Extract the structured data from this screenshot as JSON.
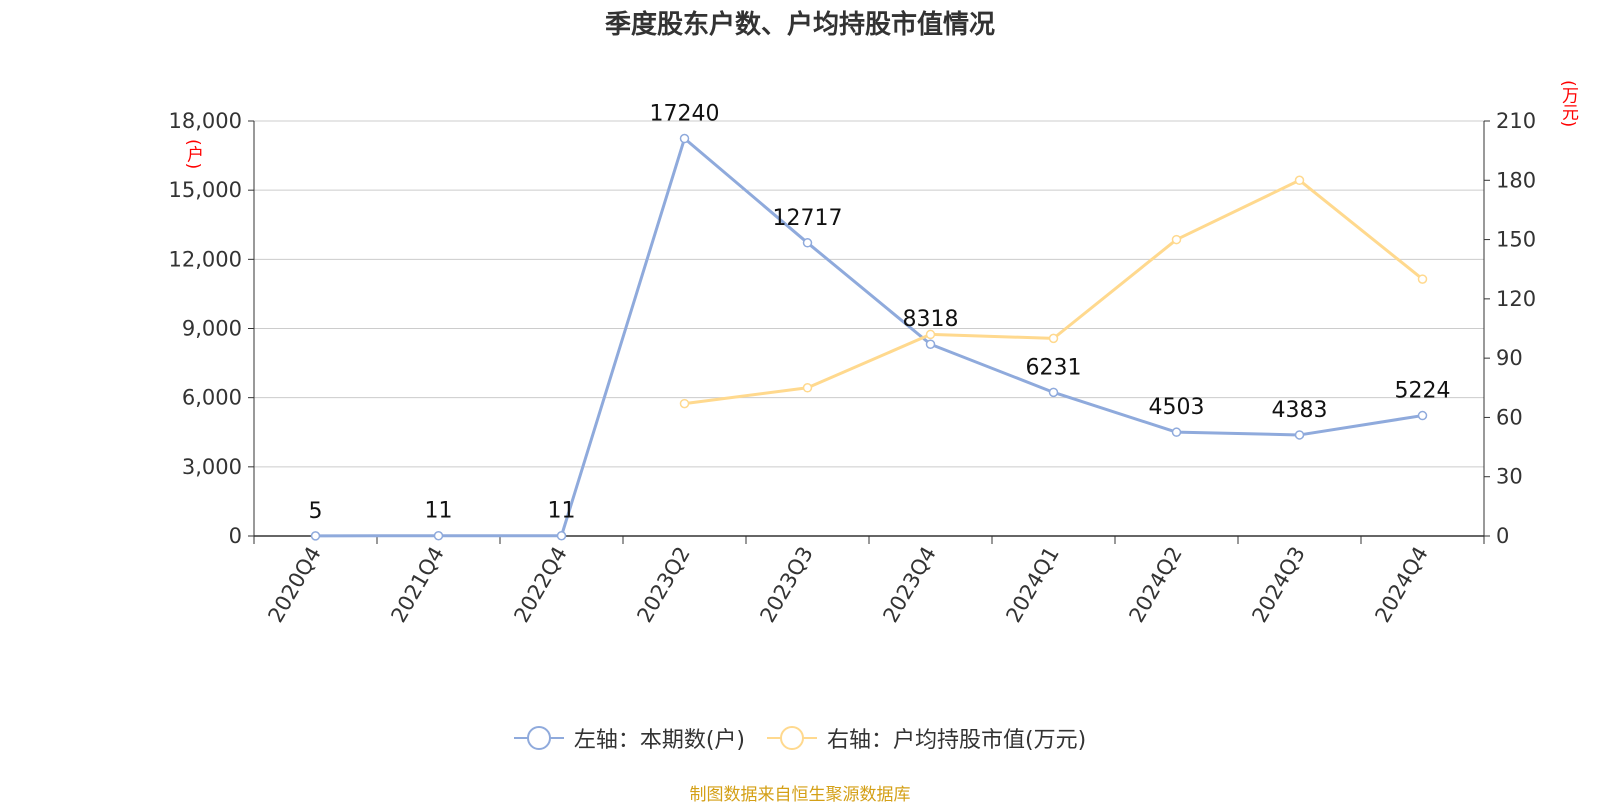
{
  "chart_data": {
    "type": "line",
    "title": "季度股东户数、户均持股市值情况",
    "categories": [
      "2020Q4",
      "2021Q4",
      "2022Q4",
      "2023Q2",
      "2023Q3",
      "2023Q4",
      "2024Q1",
      "2024Q2",
      "2024Q3",
      "2024Q4"
    ],
    "series": [
      {
        "name": "左轴：本期数(户)",
        "axis": "left",
        "color": "#8faadc",
        "values": [
          5,
          11,
          11,
          17240,
          12717,
          8318,
          6231,
          4503,
          4383,
          5224
        ],
        "data_labels": true
      },
      {
        "name": "右轴：户均持股市值(万元)",
        "axis": "right",
        "color": "#ffd98e",
        "values": [
          null,
          null,
          null,
          67,
          75,
          102,
          100,
          150,
          180,
          130
        ],
        "data_labels": false
      }
    ],
    "y_left": {
      "unit": "(户)",
      "ylim": [
        0,
        18000
      ],
      "ticks": [
        "0",
        "3,000",
        "6,000",
        "9,000",
        "12,000",
        "15,000",
        "18,000"
      ]
    },
    "y_right": {
      "unit": "(万元)",
      "ylim": [
        0,
        210
      ],
      "ticks": [
        "0",
        "30",
        "60",
        "90",
        "120",
        "150",
        "180",
        "210"
      ]
    },
    "grid": true,
    "legend_position": "bottom-center",
    "source": "制图数据来自恒生聚源数据库",
    "colors": {
      "left_unit": "#ff0000",
      "source": "#d4a017",
      "axis": "#333333",
      "grid": "#cccccc"
    }
  }
}
